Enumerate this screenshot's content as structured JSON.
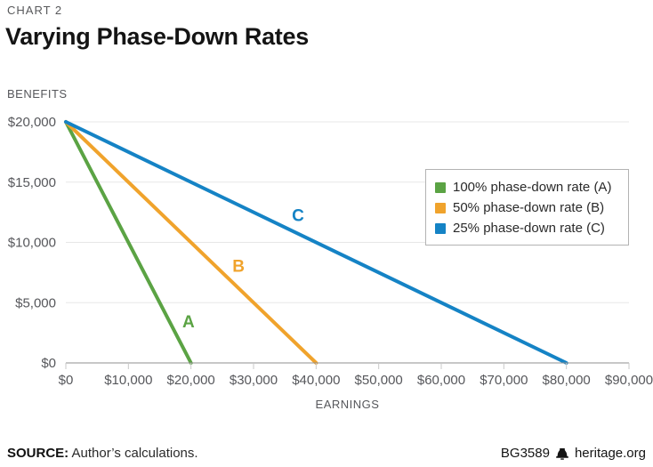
{
  "header": {
    "kicker": "CHART 2",
    "title": "Varying Phase-Down Rates"
  },
  "chart_data": {
    "type": "line",
    "title": "Varying Phase-Down Rates",
    "xlabel": "EARNINGS",
    "ylabel": "BENEFITS",
    "xlim": [
      0,
      90000
    ],
    "ylim": [
      0,
      20000
    ],
    "grid": "horizontal-only",
    "legend_position": "top-right",
    "x_ticks": [
      {
        "value": 0,
        "label": "$0"
      },
      {
        "value": 10000,
        "label": "$10,000"
      },
      {
        "value": 20000,
        "label": "$20,000"
      },
      {
        "value": 30000,
        "label": "$30,000"
      },
      {
        "value": 40000,
        "label": "$40,000"
      },
      {
        "value": 50000,
        "label": "$50,000"
      },
      {
        "value": 60000,
        "label": "$60,000"
      },
      {
        "value": 70000,
        "label": "$70,000"
      },
      {
        "value": 80000,
        "label": "$80,000"
      },
      {
        "value": 90000,
        "label": "$90,000"
      }
    ],
    "y_ticks": [
      {
        "value": 0,
        "label": "$0"
      },
      {
        "value": 5000,
        "label": "$5,000"
      },
      {
        "value": 10000,
        "label": "$10,000"
      },
      {
        "value": 15000,
        "label": "$15,000"
      },
      {
        "value": 20000,
        "label": "$20,000"
      }
    ],
    "series": [
      {
        "name": "100% phase-down rate (A)",
        "letter": "A",
        "color": "#5ba344",
        "points": [
          [
            0,
            20000
          ],
          [
            20000,
            0
          ]
        ],
        "letter_pos": [
          19600,
          3400
        ]
      },
      {
        "name": "50% phase-down rate (B)",
        "letter": "B",
        "color": "#f0a32c",
        "points": [
          [
            0,
            20000
          ],
          [
            40000,
            0
          ]
        ],
        "letter_pos": [
          27600,
          8000
        ]
      },
      {
        "name": "25% phase-down rate (C)",
        "letter": "C",
        "color": "#1583c5",
        "points": [
          [
            0,
            20000
          ],
          [
            80000,
            0
          ]
        ],
        "letter_pos": [
          37100,
          12200
        ]
      }
    ]
  },
  "colors": {
    "grid": "#e7e7e7",
    "axis": "#8f8f8f",
    "tick": "#c9c9c9",
    "tick_text": "#56575b"
  },
  "footer": {
    "source_label": "SOURCE:",
    "source_text": "Author’s calculations.",
    "doc_id": "BG3589",
    "site": "heritage.org"
  }
}
